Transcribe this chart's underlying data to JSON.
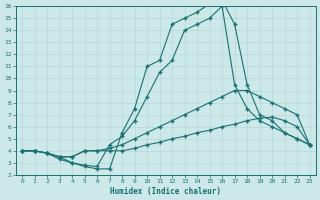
{
  "title": "",
  "xlabel": "Humidex (Indice chaleur)",
  "bg_color": "#cce8e8",
  "line_color": "#1a7070",
  "grid_color": "#b8d8d8",
  "xlim": [
    -0.5,
    23.5
  ],
  "ylim": [
    2,
    16
  ],
  "xticks": [
    0,
    1,
    2,
    3,
    4,
    5,
    6,
    7,
    8,
    9,
    10,
    11,
    12,
    13,
    14,
    15,
    16,
    17,
    18,
    19,
    20,
    21,
    22,
    23
  ],
  "yticks": [
    2,
    3,
    4,
    5,
    6,
    7,
    8,
    9,
    10,
    11,
    12,
    13,
    14,
    15,
    16
  ],
  "curve1_x": [
    0,
    1,
    2,
    3,
    4,
    5,
    6,
    7,
    8,
    9,
    10,
    11,
    12,
    13,
    14,
    15,
    16,
    17,
    18,
    19,
    20,
    21,
    22,
    23
  ],
  "curve1_y": [
    4.0,
    4.0,
    3.8,
    3.5,
    3.5,
    4.0,
    4.0,
    4.0,
    4.0,
    4.2,
    4.5,
    4.7,
    5.0,
    5.2,
    5.5,
    5.7,
    6.0,
    6.2,
    6.5,
    6.7,
    6.8,
    6.5,
    6.0,
    4.5
  ],
  "curve2_x": [
    0,
    1,
    2,
    3,
    4,
    5,
    6,
    7,
    8,
    9,
    10,
    11,
    12,
    13,
    14,
    15,
    16,
    17,
    18,
    19,
    20,
    21,
    22,
    23
  ],
  "curve2_y": [
    4.0,
    4.0,
    3.8,
    3.5,
    3.5,
    4.0,
    4.0,
    4.2,
    4.5,
    5.0,
    5.5,
    6.0,
    6.5,
    7.0,
    7.5,
    8.0,
    8.5,
    9.0,
    9.0,
    8.5,
    8.0,
    7.5,
    7.0,
    4.5
  ],
  "curve3_x": [
    0,
    1,
    2,
    3,
    4,
    5,
    6,
    7,
    8,
    9,
    10,
    11,
    12,
    13,
    14,
    15,
    16,
    17,
    18,
    19,
    20,
    21,
    22,
    23
  ],
  "curve3_y": [
    4.0,
    4.0,
    3.8,
    3.5,
    3.0,
    2.8,
    2.7,
    4.5,
    5.2,
    6.5,
    8.5,
    10.5,
    11.5,
    14.0,
    14.5,
    15.0,
    16.0,
    9.5,
    7.5,
    6.5,
    6.0,
    5.5,
    5.0,
    4.5
  ],
  "curve4_x": [
    0,
    1,
    2,
    3,
    4,
    5,
    6,
    7,
    8,
    9,
    10,
    11,
    12,
    13,
    14,
    15,
    16,
    17,
    18,
    19,
    20,
    21,
    22,
    23
  ],
  "curve4_y": [
    4.0,
    4.0,
    3.8,
    3.3,
    3.0,
    2.7,
    2.5,
    2.5,
    5.5,
    7.5,
    11.0,
    11.5,
    14.5,
    15.0,
    15.5,
    16.2,
    16.5,
    14.5,
    9.5,
    7.0,
    6.5,
    5.5,
    5.0,
    4.5
  ]
}
